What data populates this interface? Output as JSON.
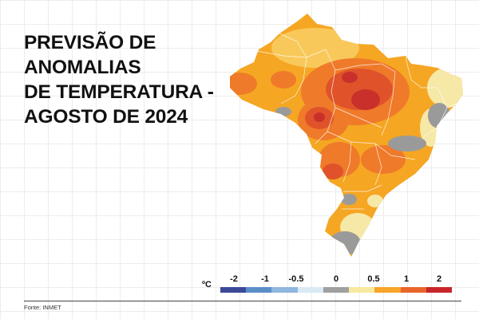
{
  "title_lines": [
    "PREVISÃO DE",
    "ANOMALIAS",
    "DE TEMPERATURA -",
    "AGOSTO DE 2024"
  ],
  "legend": {
    "unit": "ºC",
    "tick_labels": [
      "-2",
      "-1",
      "-0.5",
      "0",
      "0.5",
      "1",
      "2"
    ],
    "colors": [
      "#3b4a98",
      "#5a8ec9",
      "#8fb6df",
      "#d9eaf5",
      "#a0a0a0",
      "#f7e9a0",
      "#f6a528",
      "#e8662a",
      "#c8262a"
    ]
  },
  "map": {
    "colors": {
      "base": "#f5a623",
      "warm_light": "#f8c95a",
      "warm": "#ef7a2a",
      "hot": "#e0532a",
      "very_hot": "#c9302c",
      "neutral": "#9a9a9a",
      "cool": "#f6e8a6",
      "borders": "#ffffff"
    }
  },
  "source": "Fonte: INMET"
}
